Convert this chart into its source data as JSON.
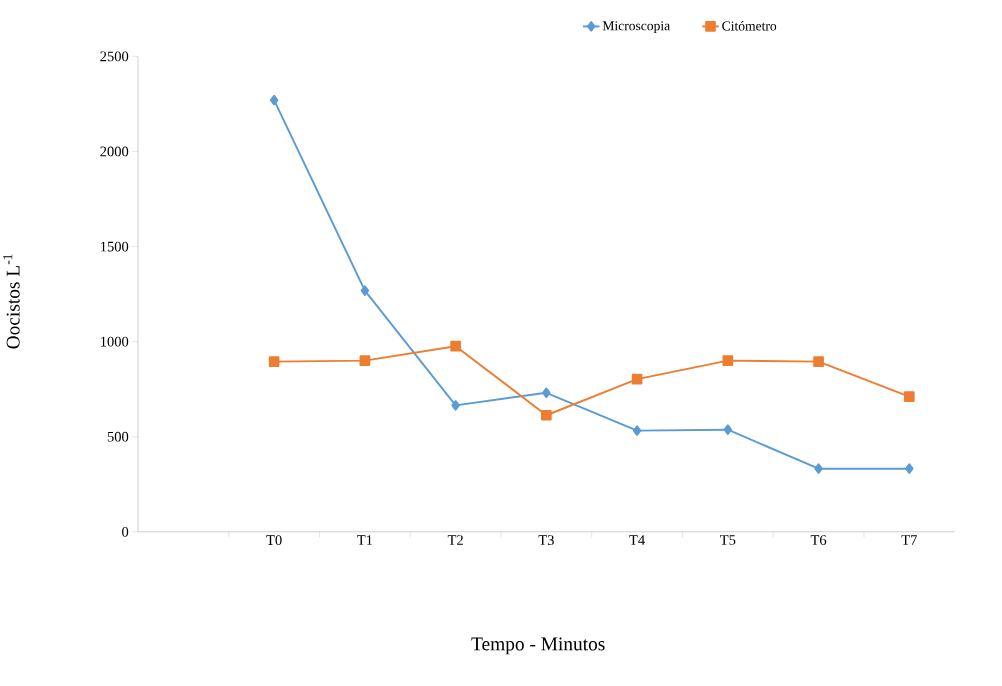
{
  "chart_data": {
    "type": "line",
    "xlabel": "Tempo - Minutos",
    "ylabel": "Oocistos L$^{-1}$",
    "categories": [
      null,
      "T0",
      "T1",
      "T2",
      "T3",
      "T4",
      "T5",
      "T6",
      "T7"
    ],
    "series": [
      {
        "name": "Microscopia",
        "color": "#5b9bd5",
        "marker": "diamond",
        "values": [
          null,
          2270,
          1268,
          665,
          731,
          532,
          537,
          332,
          332
        ]
      },
      {
        "name": "Citómetro",
        "color": "#ed7d31",
        "marker": "square",
        "values": [
          null,
          895,
          900,
          976,
          613,
          803,
          900,
          895,
          711
        ]
      }
    ],
    "ylim": [
      0,
      2500
    ],
    "yticks": [
      0,
      500,
      1000,
      1500,
      2000,
      2500
    ],
    "legend": "top right",
    "grid": false
  }
}
